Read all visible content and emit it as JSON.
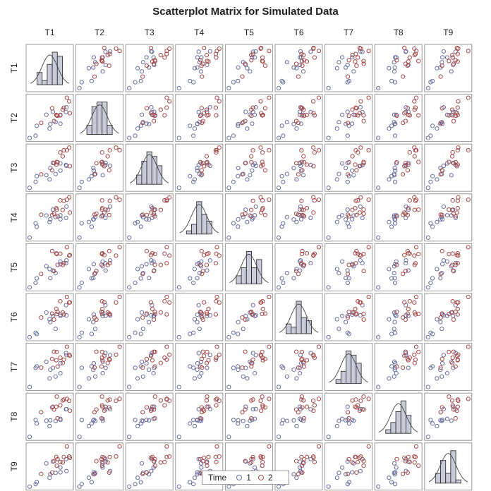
{
  "title": "Scatterplot Matrix for Simulated Data",
  "chart_data": {
    "type": "scatter",
    "subtype": "scatterplot-matrix",
    "variables": [
      "T1",
      "T2",
      "T3",
      "T4",
      "T5",
      "T6",
      "T7",
      "T8",
      "T9"
    ],
    "diagonal": "histogram-with-normal-density",
    "group_variable": "Time",
    "groups": [
      "1",
      "2"
    ],
    "colors": {
      "1": "#6b6f9e",
      "2": "#a54a4a",
      "hist_fill": "#c9cad8",
      "hist_edge": "#333333",
      "frame": "#9a9a9a"
    },
    "axes_shown": false,
    "legend_position": "bottom",
    "grid": false
  },
  "legend": {
    "title": "Time",
    "entries": [
      {
        "label": "1",
        "color": "#6b6f9e"
      },
      {
        "label": "2",
        "color": "#a54a4a"
      }
    ]
  }
}
